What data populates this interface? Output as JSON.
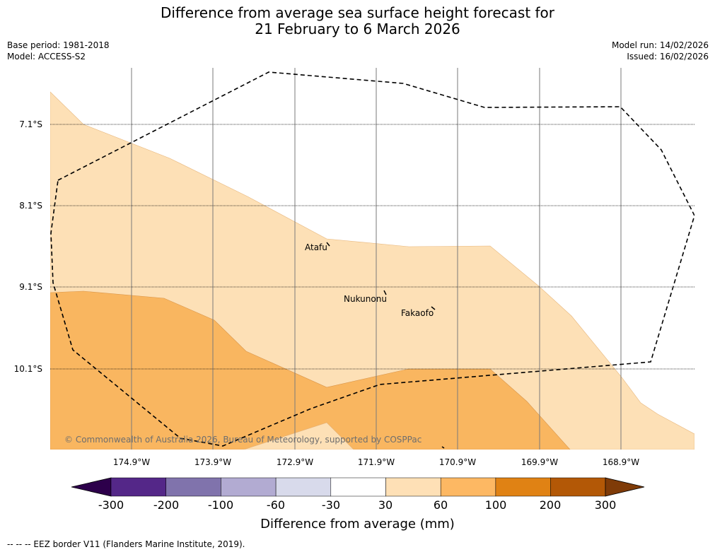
{
  "title": {
    "line1": "Difference from average sea surface height forecast for",
    "line2": "21 February to 6 March 2026"
  },
  "info_left": {
    "base_period": "Base period: 1981-2018",
    "model": "Model: ACCESS-S2"
  },
  "info_right": {
    "model_run": "Model run: 14/02/2026",
    "issued": "Issued: 16/02/2026"
  },
  "map": {
    "latitudes": [
      "7.1°S",
      "8.1°S",
      "9.1°S",
      "10.1°S"
    ],
    "longitudes": [
      "174.9°W",
      "173.9°W",
      "172.9°W",
      "171.9°W",
      "170.9°W",
      "169.9°W",
      "168.9°W"
    ],
    "places": {
      "atafu": "Atafu",
      "nukunonu": "Nukunonu",
      "fakaofo": "Fakaofo"
    },
    "copyright": "© Commonwealth of Australia 2026, Bureau of Meteorology, supported by COSPPac",
    "colors": {
      "band_30_60": "#fde0b6",
      "band_60_100": "#f9b660"
    }
  },
  "colorbar": {
    "ticks": [
      "-300",
      "-200",
      "-100",
      "-60",
      "-30",
      "30",
      "60",
      "100",
      "200",
      "300"
    ],
    "colors": [
      "#2d004b",
      "#542788",
      "#8073ac",
      "#b2abd2",
      "#d8daeb",
      "#ffffff",
      "#fee0b6",
      "#fdb863",
      "#e08214",
      "#b35806",
      "#7f3b08"
    ],
    "title": "Difference from average (mm)"
  },
  "footer": "--  --  -- EEZ border V11 (Flanders Marine Institute, 2019)."
}
